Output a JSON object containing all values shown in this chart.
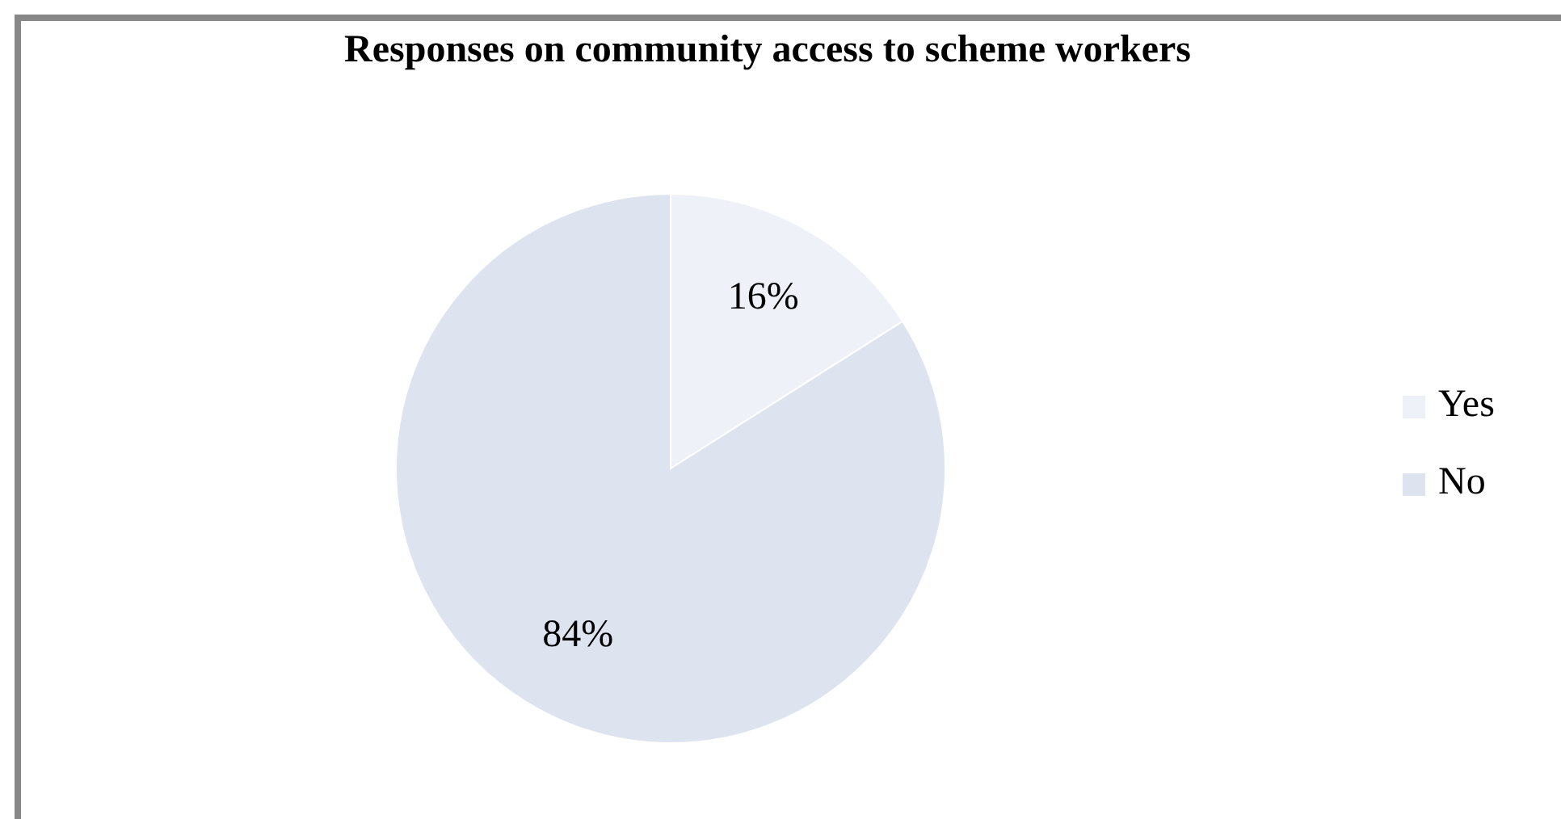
{
  "chart_data": {
    "type": "pie",
    "title": "Responses on community access to scheme workers",
    "categories": [
      "Yes",
      "No"
    ],
    "values": [
      16,
      84
    ],
    "value_labels": [
      "16%",
      "84%"
    ],
    "colors": [
      "#eef2f8",
      "#dde4ef"
    ],
    "legend": "right"
  }
}
